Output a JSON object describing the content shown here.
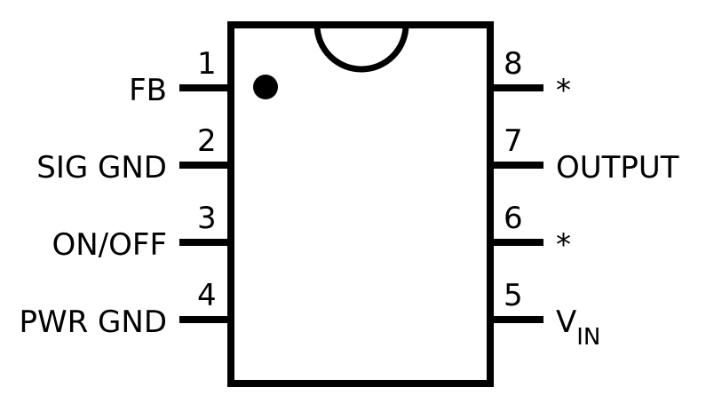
{
  "diagram": {
    "colors": {
      "ink": "#000000",
      "background": "#ffffff"
    },
    "left_pins": [
      {
        "number": "1",
        "label": "FB"
      },
      {
        "number": "2",
        "label": "SIG GND"
      },
      {
        "number": "3",
        "label": "ON/OFF"
      },
      {
        "number": "4",
        "label": "PWR GND"
      }
    ],
    "right_pins": [
      {
        "number": "8",
        "label": "*"
      },
      {
        "number": "7",
        "label": "OUTPUT"
      },
      {
        "number": "6",
        "label": "*"
      },
      {
        "number": "5",
        "label": "V",
        "label_subscript": "IN"
      }
    ]
  }
}
